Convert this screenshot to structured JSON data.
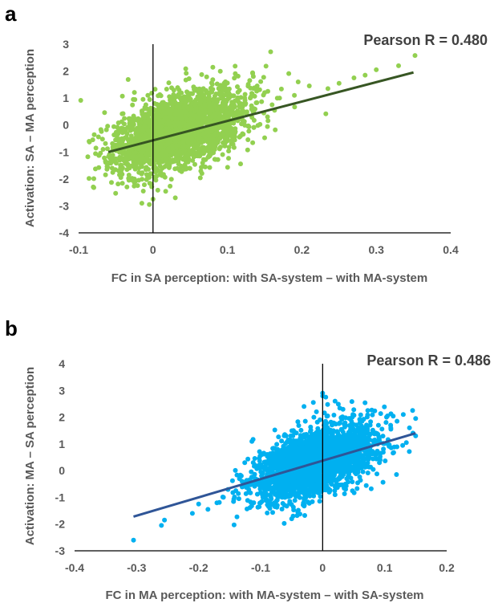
{
  "chart_data": [
    {
      "panel": "a",
      "type": "scatter",
      "title": "",
      "xlabel": "FC in SA perception: with SA-system – with MA-system",
      "ylabel": "Activation: SA – MA perception",
      "xlim": [
        -0.1,
        0.4
      ],
      "ylim": [
        -4,
        3
      ],
      "xticks": [
        "-0.1",
        "0",
        "0.1",
        "0.2",
        "0.3",
        "0.4"
      ],
      "yticks": [
        "-4",
        "-3",
        "-2",
        "-1",
        "0",
        "1",
        "2",
        "3"
      ],
      "annotation": "Pearson R = 0.480",
      "grid": false,
      "point_color": "#92D050",
      "line_color": "#375623",
      "trend_line": {
        "x": [
          -0.06,
          0.35
        ],
        "y": [
          -1.0,
          1.95
        ]
      },
      "cloud": {
        "x_mean": 0.035,
        "x_sd": 0.045,
        "y_mean": -0.2,
        "y_sd": 0.75,
        "correlation": 0.48,
        "n": 2600,
        "seed": 11
      },
      "points": [
        {
          "x": 0.352,
          "y": 2.58
        },
        {
          "x": 0.33,
          "y": 2.2
        },
        {
          "x": 0.3,
          "y": 2.05
        },
        {
          "x": 0.285,
          "y": 1.85
        },
        {
          "x": 0.27,
          "y": 1.75
        },
        {
          "x": 0.25,
          "y": 1.55
        },
        {
          "x": 0.235,
          "y": 1.35
        },
        {
          "x": 0.21,
          "y": 1.45
        },
        {
          "x": 0.195,
          "y": 1.6
        },
        {
          "x": 0.19,
          "y": 1.1
        },
        {
          "x": 0.17,
          "y": 1.0
        },
        {
          "x": 0.16,
          "y": 0.75
        },
        {
          "x": 0.15,
          "y": 1.2
        },
        {
          "x": 0.14,
          "y": 1.45
        },
        {
          "x": 0.13,
          "y": 1.65
        },
        {
          "x": 0.025,
          "y": 1.38
        },
        {
          "x": 0.035,
          "y": 1.3
        },
        {
          "x": -0.015,
          "y": -2.9
        },
        {
          "x": -0.005,
          "y": -2.95
        },
        {
          "x": 0.0,
          "y": -2.75
        },
        {
          "x": 0.03,
          "y": -2.7
        },
        {
          "x": -0.035,
          "y": -2.3
        },
        {
          "x": -0.06,
          "y": -1.4
        },
        {
          "x": -0.055,
          "y": -1.6
        },
        {
          "x": -0.05,
          "y": -1.25
        },
        {
          "x": -0.04,
          "y": -0.9
        },
        {
          "x": -0.045,
          "y": -1.85
        },
        {
          "x": -0.025,
          "y": -2.0
        },
        {
          "x": -0.035,
          "y": -1.15
        },
        {
          "x": 0.1,
          "y": -0.5
        },
        {
          "x": 0.11,
          "y": -0.3
        },
        {
          "x": 0.12,
          "y": 0.2
        }
      ]
    },
    {
      "panel": "b",
      "type": "scatter",
      "title": "",
      "xlabel": "FC in MA perception: with MA-system – with SA-system",
      "ylabel": "Activation: MA – SA perception",
      "xlim": [
        -0.4,
        0.2
      ],
      "ylim": [
        -3,
        4
      ],
      "xticks": [
        "-0.4",
        "-0.3",
        "-0.2",
        "-0.1",
        "0",
        "0.1",
        "0.2"
      ],
      "yticks": [
        "-3",
        "-2",
        "-1",
        "0",
        "1",
        "2",
        "3",
        "4"
      ],
      "annotation": "Pearson R = 0.486",
      "grid": false,
      "point_color": "#00B0F0",
      "line_color": "#2F5597",
      "trend_line": {
        "x": [
          -0.305,
          0.15
        ],
        "y": [
          -1.72,
          1.4
        ]
      },
      "cloud": {
        "x_mean": -0.015,
        "x_sd": 0.05,
        "y_mean": 0.3,
        "y_sd": 0.68,
        "correlation": 0.5,
        "n": 2600,
        "seed": 29
      },
      "points": [
        {
          "x": -0.305,
          "y": -2.6
        },
        {
          "x": -0.26,
          "y": -2.05
        },
        {
          "x": -0.255,
          "y": -1.85
        },
        {
          "x": -0.21,
          "y": -1.6
        },
        {
          "x": -0.2,
          "y": -1.25
        },
        {
          "x": -0.185,
          "y": -1.45
        },
        {
          "x": -0.16,
          "y": -1.0
        },
        {
          "x": -0.14,
          "y": -0.75
        },
        {
          "x": -0.13,
          "y": -0.4
        },
        {
          "x": -0.12,
          "y": -0.55
        },
        {
          "x": -0.135,
          "y": -1.05
        },
        {
          "x": 0.0,
          "y": 2.9
        },
        {
          "x": 0.005,
          "y": 2.75
        },
        {
          "x": -0.015,
          "y": 2.55
        },
        {
          "x": 0.02,
          "y": 2.6
        },
        {
          "x": -0.03,
          "y": 2.4
        },
        {
          "x": -0.01,
          "y": 2.2
        },
        {
          "x": 0.145,
          "y": 2.25
        },
        {
          "x": 0.15,
          "y": 1.95
        },
        {
          "x": 0.13,
          "y": 2.1
        },
        {
          "x": 0.12,
          "y": 1.85
        },
        {
          "x": 0.14,
          "y": 1.6
        },
        {
          "x": 0.15,
          "y": 1.3
        },
        {
          "x": 0.135,
          "y": 1.05
        },
        {
          "x": 0.11,
          "y": 1.55
        },
        {
          "x": 0.09,
          "y": 1.7
        },
        {
          "x": 0.08,
          "y": 1.4
        },
        {
          "x": -0.05,
          "y": -1.8
        },
        {
          "x": -0.04,
          "y": -1.55
        },
        {
          "x": -0.1,
          "y": -1.2
        },
        {
          "x": 0.02,
          "y": -0.9
        }
      ]
    }
  ]
}
